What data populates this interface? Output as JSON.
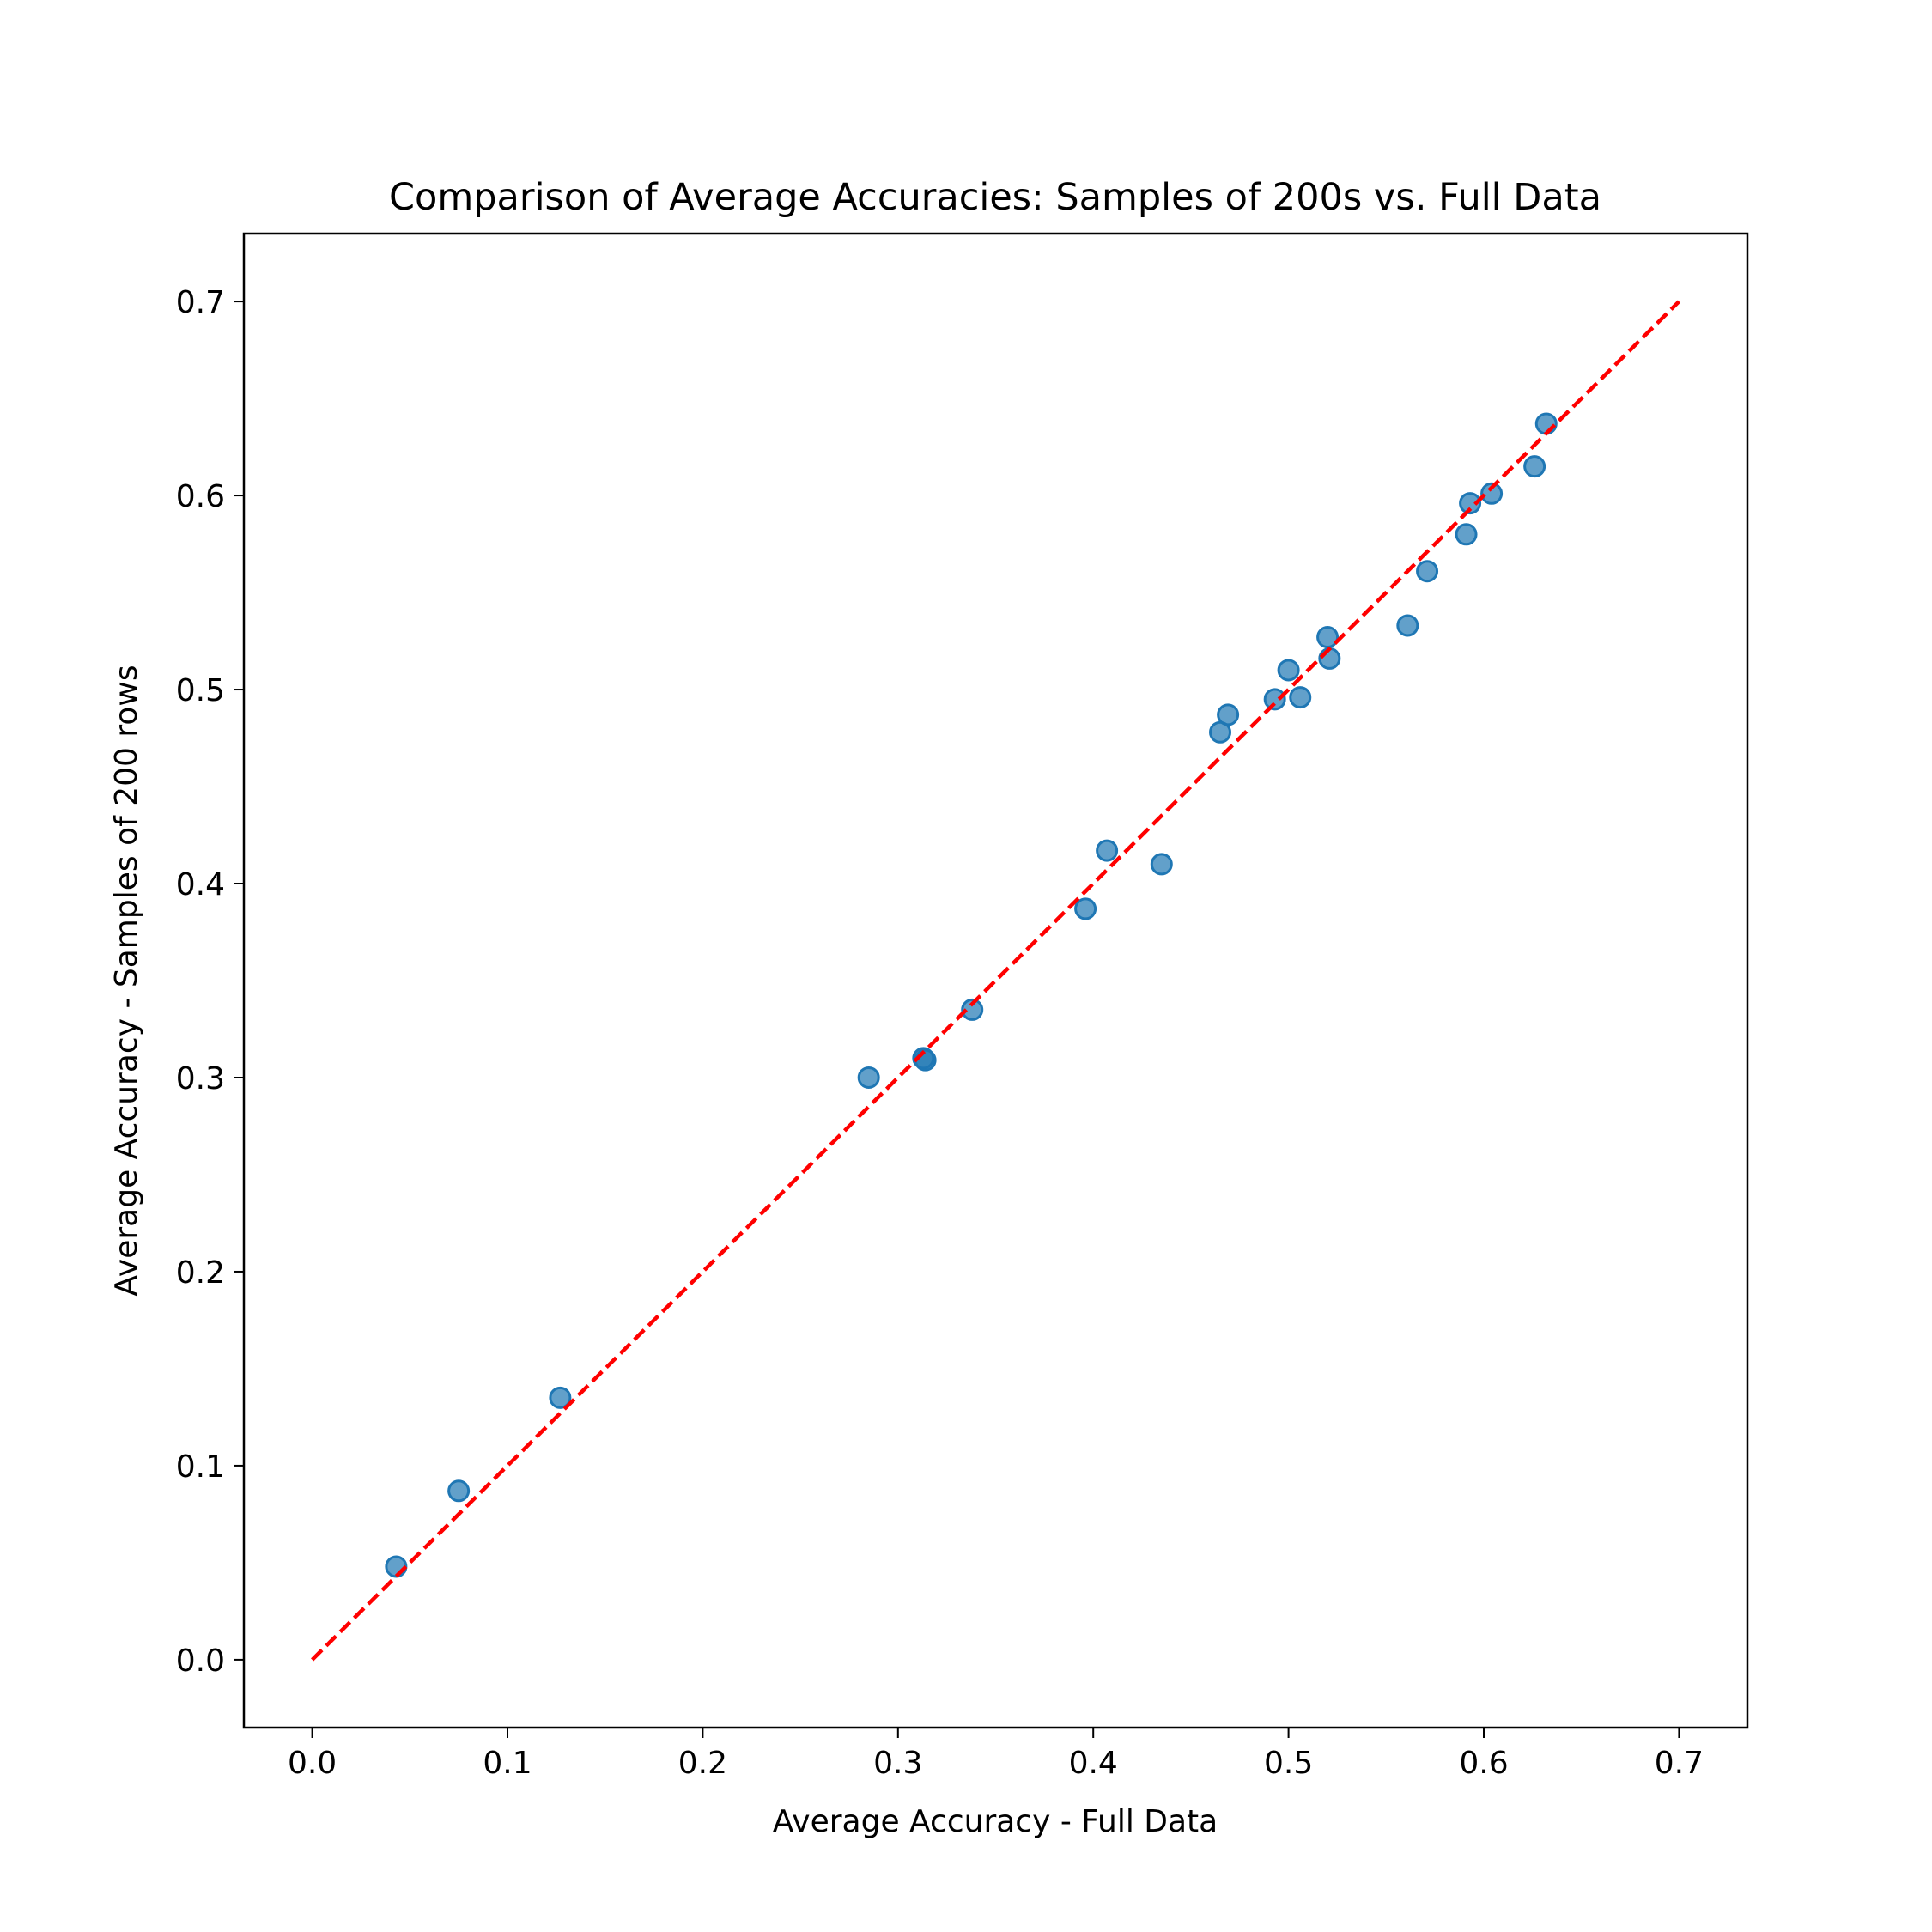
{
  "chart_data": {
    "type": "scatter",
    "title": "Comparison of Average Accuracies: Samples of 200s vs. Full Data",
    "xlabel": "Average Accuracy - Full Data",
    "ylabel": "Average Accuracy - Samples of 200 rows",
    "xlim": [
      -0.035,
      0.735
    ],
    "ylim": [
      -0.035,
      0.735
    ],
    "x_ticks": [
      0.0,
      0.1,
      0.2,
      0.3,
      0.4,
      0.5,
      0.6,
      0.7
    ],
    "y_ticks": [
      0.0,
      0.1,
      0.2,
      0.3,
      0.4,
      0.5,
      0.6,
      0.7
    ],
    "x_tick_labels": [
      "0.0",
      "0.1",
      "0.2",
      "0.3",
      "0.4",
      "0.5",
      "0.6",
      "0.7"
    ],
    "y_tick_labels": [
      "0.0",
      "0.1",
      "0.2",
      "0.3",
      "0.4",
      "0.5",
      "0.6",
      "0.7"
    ],
    "grid": false,
    "point_color": "#1f77b4",
    "line_color": "#ff0000",
    "reference_line": {
      "x": [
        0.0,
        0.7
      ],
      "y": [
        0.0,
        0.7
      ],
      "style": "dashed"
    },
    "points": [
      {
        "x": 0.043,
        "y": 0.048
      },
      {
        "x": 0.075,
        "y": 0.087
      },
      {
        "x": 0.127,
        "y": 0.135
      },
      {
        "x": 0.285,
        "y": 0.3
      },
      {
        "x": 0.313,
        "y": 0.31
      },
      {
        "x": 0.314,
        "y": 0.309
      },
      {
        "x": 0.338,
        "y": 0.335
      },
      {
        "x": 0.396,
        "y": 0.387
      },
      {
        "x": 0.407,
        "y": 0.417
      },
      {
        "x": 0.435,
        "y": 0.41
      },
      {
        "x": 0.465,
        "y": 0.478
      },
      {
        "x": 0.469,
        "y": 0.487
      },
      {
        "x": 0.493,
        "y": 0.495
      },
      {
        "x": 0.5,
        "y": 0.51
      },
      {
        "x": 0.506,
        "y": 0.496
      },
      {
        "x": 0.52,
        "y": 0.527
      },
      {
        "x": 0.521,
        "y": 0.516
      },
      {
        "x": 0.561,
        "y": 0.533
      },
      {
        "x": 0.571,
        "y": 0.561
      },
      {
        "x": 0.591,
        "y": 0.58
      },
      {
        "x": 0.593,
        "y": 0.596
      },
      {
        "x": 0.604,
        "y": 0.601
      },
      {
        "x": 0.626,
        "y": 0.615
      },
      {
        "x": 0.632,
        "y": 0.637
      }
    ]
  }
}
